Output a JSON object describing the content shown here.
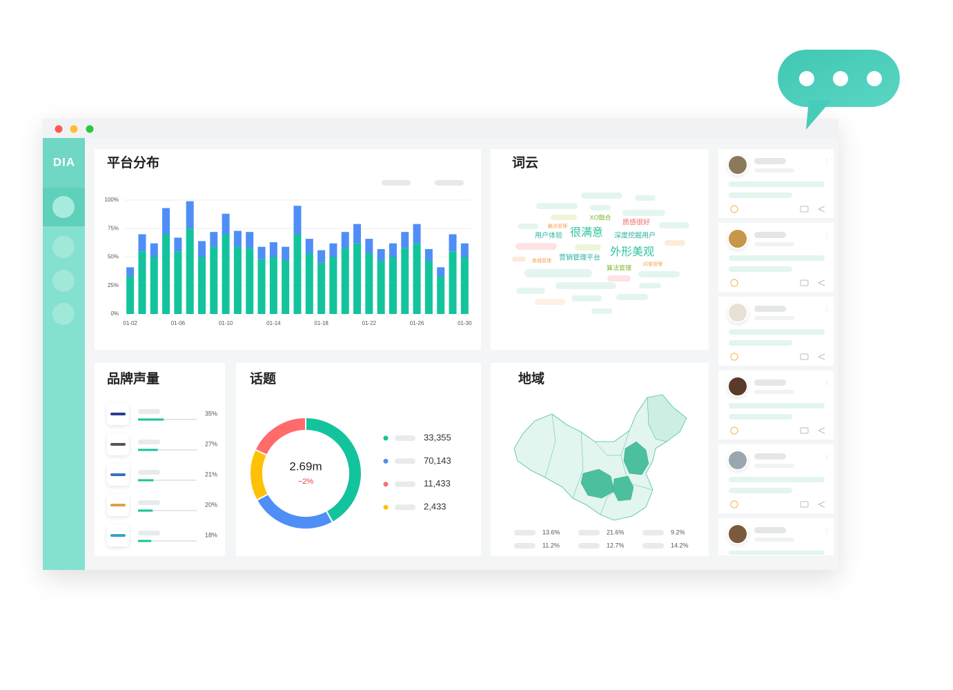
{
  "logo": "DIA",
  "platform": {
    "type": "bar",
    "title": "平台分布",
    "categories": [
      "01-02",
      null,
      null,
      null,
      "01-06",
      null,
      null,
      null,
      "01-10",
      null,
      null,
      null,
      "01-14",
      null,
      null,
      null,
      "01-18",
      null,
      null,
      null,
      "01-22",
      null,
      null,
      null,
      "01-26",
      null,
      null,
      null,
      "01-30"
    ],
    "series": [
      {
        "color": "#13c39c",
        "values": [
          33,
          55,
          50,
          70,
          55,
          75,
          50,
          59,
          70,
          59,
          58,
          48,
          50,
          47,
          70,
          53,
          45,
          50,
          58,
          62,
          53,
          47,
          50,
          58,
          62,
          47,
          33,
          55,
          50
        ]
      },
      {
        "color": "#4f8ef7",
        "values": [
          8,
          15,
          12,
          23,
          12,
          24,
          14,
          13,
          18,
          14,
          14,
          11,
          13,
          12,
          25,
          13,
          11,
          12,
          14,
          17,
          13,
          10,
          12,
          14,
          17,
          10,
          8,
          15,
          12
        ]
      }
    ],
    "ylim": [
      0,
      100
    ],
    "yticks": [
      {
        "value": 0,
        "label": "0%"
      },
      {
        "value": 25,
        "label": "25%"
      },
      {
        "value": 50,
        "label": "50%"
      },
      {
        "value": 75,
        "label": "75%"
      },
      {
        "value": 100,
        "label": "100%"
      }
    ],
    "grid": true
  },
  "wordcloud": {
    "title": "词云",
    "words": [
      {
        "text": "XO融合",
        "color": "#7cb82f"
      },
      {
        "text": "触点管理",
        "color": "#f5a04a"
      },
      {
        "text": "质感很好",
        "color": "#f06a6a"
      },
      {
        "text": "用户体验",
        "color": "#2bb3a0"
      },
      {
        "text": "很满意",
        "color": "#2ec4a0"
      },
      {
        "text": "深度挖掘用户",
        "color": "#2bb3a0"
      },
      {
        "text": "外形美观",
        "color": "#2ec4a0"
      },
      {
        "text": "商城管理",
        "color": "#f5a04a"
      },
      {
        "text": "营销管理平台",
        "color": "#2bb3a0"
      },
      {
        "text": "算法管理",
        "color": "#7cb82f"
      },
      {
        "text": "问卷管理",
        "color": "#f5a04a"
      }
    ]
  },
  "brands": {
    "title": "品牌声量",
    "values": [
      35,
      27,
      21,
      20,
      18
    ],
    "value_labels": [
      "35%",
      "27%",
      "21%",
      "20%",
      "18%"
    ],
    "xlim": [
      0,
      80
    ],
    "color": "#13c39c"
  },
  "topic": {
    "type": "pie",
    "title": "话题",
    "center_value": "2.69m",
    "center_change": "−2%",
    "segments": {
      "values": [
        42,
        25,
        15,
        18
      ],
      "colors": [
        "#13c39c",
        "#4f8ef7",
        "#ffc107",
        "#ff6b6b"
      ]
    },
    "legend": [
      {
        "value": 33355,
        "label": "33,355",
        "color": "#13c39c"
      },
      {
        "value": 70143,
        "label": "70,143",
        "color": "#4f8ef7"
      },
      {
        "value": 11433,
        "label": "11,433",
        "color": "#ff6b6b"
      },
      {
        "value": 2433,
        "label": "2,433",
        "color": "#ffc107"
      }
    ]
  },
  "region": {
    "title": "地域",
    "values": [
      13.6,
      21.6,
      9.2,
      11.2,
      12.7,
      14.2
    ],
    "value_labels": [
      "13.6%",
      "21.6%",
      "9.2%",
      "11.2%",
      "12.7%",
      "14.2%"
    ]
  }
}
